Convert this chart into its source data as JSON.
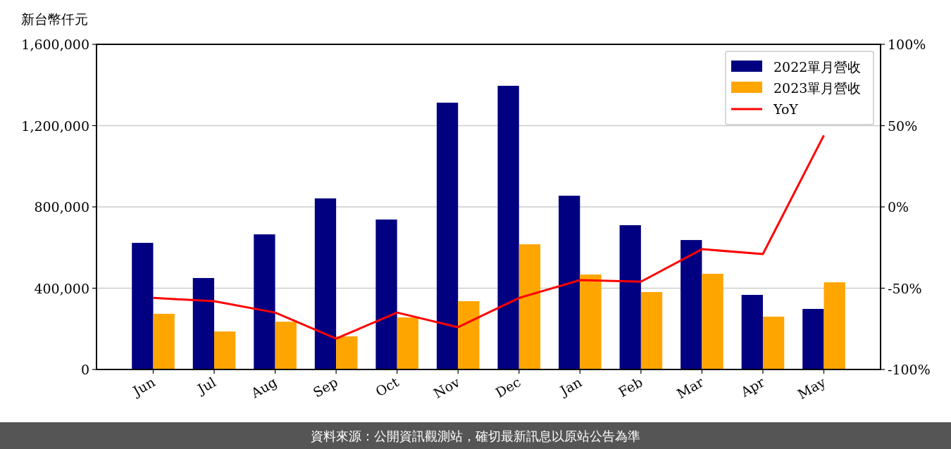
{
  "chart_data": {
    "type": "bar",
    "ylabel": "新台幣仟元",
    "categories": [
      "Jun",
      "Jul",
      "Aug",
      "Sep",
      "Oct",
      "Nov",
      "Dec",
      "Jan",
      "Feb",
      "Mar",
      "Apr",
      "May"
    ],
    "series": [
      {
        "name": "2022單月營收",
        "color": "#000080",
        "values": [
          623000,
          450000,
          665000,
          842000,
          738000,
          1313000,
          1396000,
          855000,
          710000,
          637000,
          367000,
          298000
        ]
      },
      {
        "name": "2023單月營收",
        "color": "#ffa500",
        "values": [
          274000,
          187000,
          235000,
          163000,
          256000,
          336000,
          616000,
          467000,
          381000,
          471000,
          260000,
          429000
        ]
      },
      {
        "name": "YoY",
        "type": "line",
        "axis": "y2",
        "color": "#ff0000",
        "values": [
          -56,
          -58,
          -65,
          -81,
          -65,
          -74,
          -56,
          -45,
          -46,
          -26,
          -29,
          44
        ]
      }
    ],
    "ylim": [
      0,
      1600000
    ],
    "yticks": [
      {
        "value": 0,
        "label": "0"
      },
      {
        "value": 400000,
        "label": "400,000"
      },
      {
        "value": 800000,
        "label": "800,000"
      },
      {
        "value": 1200000,
        "label": "1,200,000"
      },
      {
        "value": 1600000,
        "label": "1,600,000"
      }
    ],
    "y2lim": [
      -100,
      100
    ],
    "y2ticks": [
      {
        "value": -100,
        "label": "-100%"
      },
      {
        "value": -50,
        "label": "-50%"
      },
      {
        "value": 0,
        "label": "0%"
      },
      {
        "value": 50,
        "label": "50%"
      },
      {
        "value": 100,
        "label": "100%"
      }
    ],
    "grid": "y",
    "legend": "top right",
    "annotations": [
      "資料來源：公開資訊觀測站，確切最新訊息以原站公告為準"
    ]
  }
}
